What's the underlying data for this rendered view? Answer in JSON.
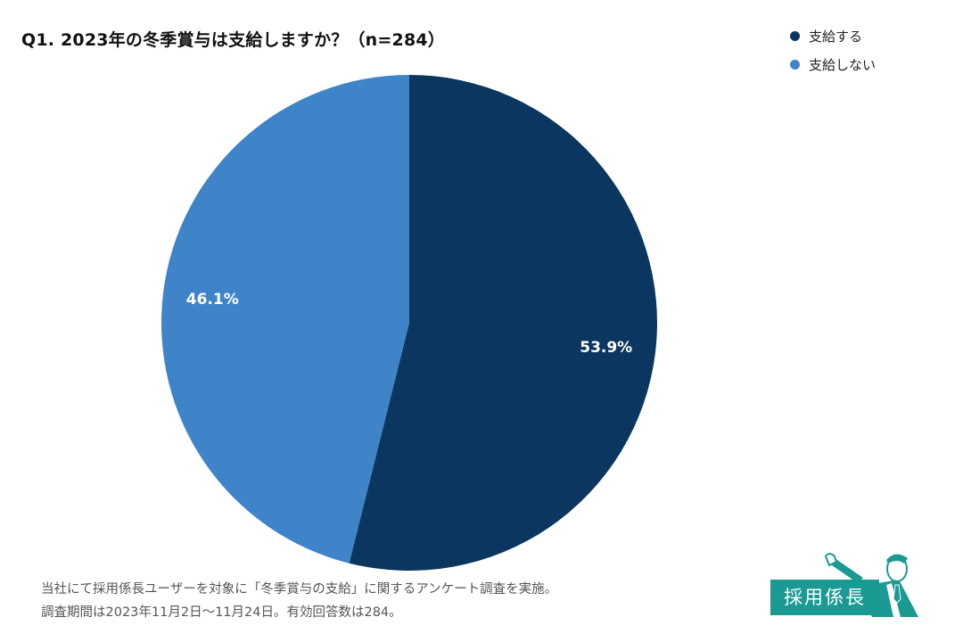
{
  "chart_data": {
    "type": "pie",
    "title": "Q1. 2023年の冬季賞与は支給しますか？（n=284）",
    "series": [
      {
        "name": "支給する",
        "value": 53.9,
        "label": "53.9%",
        "color": "#0b365f"
      },
      {
        "name": "支給しない",
        "value": 46.1,
        "label": "46.1%",
        "color": "#3f84c8"
      }
    ],
    "start_angle": "12 o'clock",
    "direction": "clockwise",
    "legend_position": "top-right"
  },
  "footnote": {
    "line1": "当社にて採用係長ユーザーを対象に「冬季賞与の支給」に関するアンケート調査を実施。",
    "line2": "調査期間は2023年11月2日～11月24日。有効回答数は284。"
  },
  "logo": {
    "text": "採用係長",
    "color": "#1a9a93"
  }
}
